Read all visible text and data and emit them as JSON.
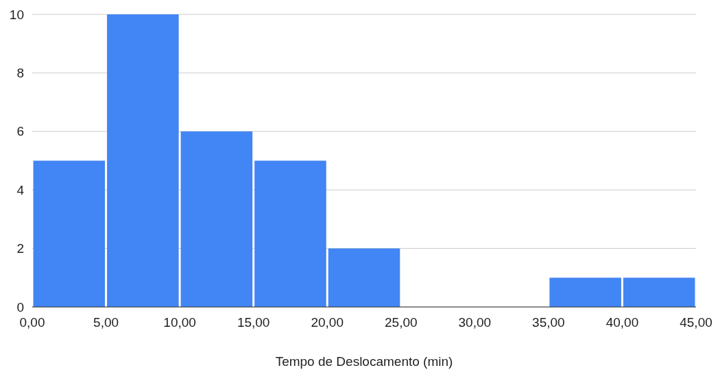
{
  "chart_data": {
    "type": "histogram",
    "xlabel": "Tempo de Deslocamento (min)",
    "bins": [
      0,
      5,
      10,
      15,
      20,
      25,
      30,
      35,
      40,
      45
    ],
    "values": [
      5,
      10,
      6,
      5,
      2,
      0,
      0,
      1,
      1
    ],
    "color": "#4285f4",
    "xlim": [
      0,
      45
    ],
    "xticks": [
      {
        "value": 0,
        "label": "0,00"
      },
      {
        "value": 5,
        "label": "5,00"
      },
      {
        "value": 10,
        "label": "10,00"
      },
      {
        "value": 15,
        "label": "15,00"
      },
      {
        "value": 20,
        "label": "20,00"
      },
      {
        "value": 25,
        "label": "25,00"
      },
      {
        "value": 30,
        "label": "30,00"
      },
      {
        "value": 35,
        "label": "35,00"
      },
      {
        "value": 40,
        "label": "40,00"
      },
      {
        "value": 45,
        "label": "45,00"
      }
    ],
    "ylim": [
      0,
      10
    ],
    "yticks": [
      0,
      2,
      4,
      6,
      8,
      10
    ],
    "grid": "y"
  }
}
